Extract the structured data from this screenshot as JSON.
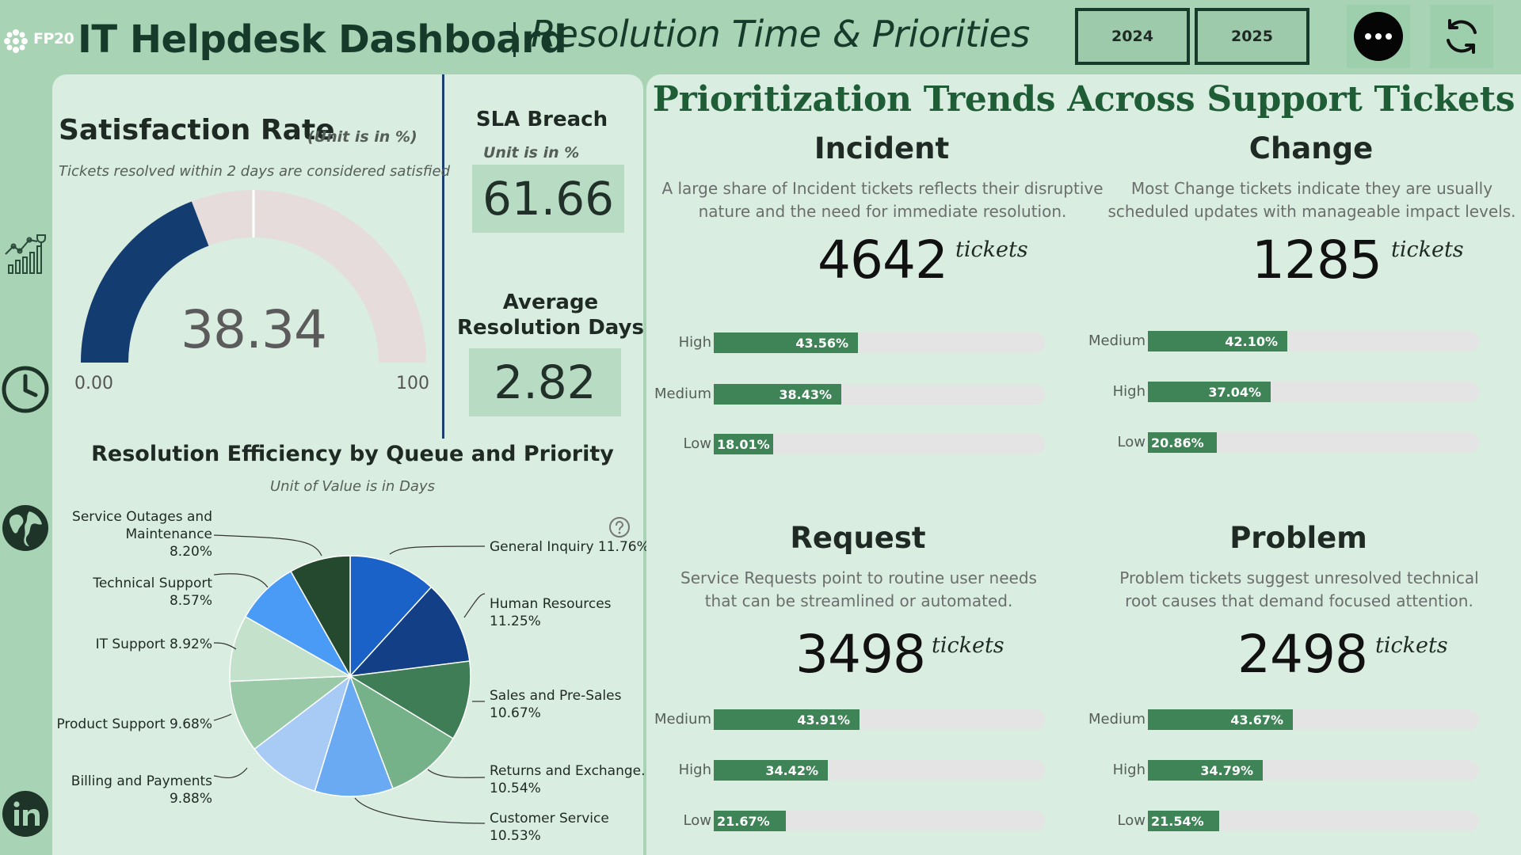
{
  "header": {
    "logo_text": "FP20",
    "app_title": "IT Helpdesk Dashboard",
    "subtitle": "Resolution Time & Priorities",
    "year_buttons": [
      "2024",
      "2025"
    ],
    "more_icon": "more-horizontal-icon",
    "refresh_icon": "refresh-icon"
  },
  "nav": {
    "icons": [
      "growth-chart-icon",
      "clock-icon",
      "globe-icon",
      "linkedin-icon"
    ]
  },
  "satisfaction": {
    "title": "Satisfaction Rate",
    "unit": "(Unit is in %)",
    "note": "Tickets resolved within 2 days are considered satisfied",
    "value": "38.34",
    "value_number": 38.34,
    "target_number": 50,
    "min": "0.00",
    "max": "100",
    "min_number": 0,
    "max_number": 100
  },
  "sla": {
    "title": "SLA Breach",
    "unit": "Unit is in %",
    "value": "61.66"
  },
  "avg_resolution": {
    "title": "Average Resolution Days",
    "value": "2.82"
  },
  "pie": {
    "title": "Resolution Efficiency by Queue and Priority",
    "unit": "Unit of Value is in Days",
    "chart_data": {
      "type": "pie",
      "title": "Resolution Efficiency by Queue and Priority",
      "categories": [
        "General Inquiry",
        "Human Resources",
        "Sales and Pre-Sales",
        "Returns and Exchange...",
        "Customer Service",
        "Billing and Payments",
        "Product Support",
        "IT Support",
        "Technical Support",
        "Service Outages and Maintenance"
      ],
      "values": [
        11.76,
        11.25,
        10.67,
        10.54,
        10.53,
        9.88,
        9.68,
        8.92,
        8.57,
        8.2
      ],
      "colors": [
        "#1a62c8",
        "#123f86",
        "#3e7d55",
        "#76b289",
        "#6aaaf2",
        "#a7cbf5",
        "#99c9a6",
        "#c4e1cc",
        "#4a9bf5",
        "#25492f"
      ]
    },
    "labels": [
      {
        "name": "General Inquiry 11.76%"
      },
      {
        "name": "Human Resources",
        "value": "11.25%"
      },
      {
        "name": "Sales and Pre-Sales",
        "value": "10.67%"
      },
      {
        "name": "Returns and Exchange...",
        "value": "10.54%"
      },
      {
        "name": "Customer Service",
        "value": "10.53%"
      },
      {
        "name": "Billing and Payments",
        "value": "9.88%"
      },
      {
        "name": "Product Support 9.68%"
      },
      {
        "name": "IT Support 8.92%"
      },
      {
        "name": "Technical Support",
        "value": "8.57%"
      },
      {
        "name": "Service Outages and",
        "name2": "Maintenance",
        "value": "8.20%"
      }
    ],
    "help_icon": "help-circle-icon"
  },
  "trends": {
    "title": "Prioritization Trends Across Support Tickets",
    "tickets_unit": "tickets",
    "categories": [
      {
        "title": "Incident",
        "desc_line1": "A large share of Incident tickets reflects their disruptive",
        "desc_line2": "nature and the need for immediate resolution.",
        "count": "4642",
        "bars": [
          {
            "label": "High",
            "pct": 43.56,
            "text": "43.56%"
          },
          {
            "label": "Medium",
            "pct": 38.43,
            "text": "38.43%"
          },
          {
            "label": "Low",
            "pct": 18.01,
            "text": "18.01%"
          }
        ]
      },
      {
        "title": "Change",
        "desc_line1": "Most Change tickets indicate they are usually",
        "desc_line2": "scheduled updates with manageable impact levels.",
        "count": "1285",
        "bars": [
          {
            "label": "Medium",
            "pct": 42.1,
            "text": "42.10%"
          },
          {
            "label": "High",
            "pct": 37.04,
            "text": "37.04%"
          },
          {
            "label": "Low",
            "pct": 20.86,
            "text": "20.86%"
          }
        ]
      },
      {
        "title": "Request",
        "desc_line1": "Service Requests point to routine user needs",
        "desc_line2": "that can be streamlined or automated.",
        "count": "3498",
        "bars": [
          {
            "label": "Medium",
            "pct": 43.91,
            "text": "43.91%"
          },
          {
            "label": "High",
            "pct": 34.42,
            "text": "34.42%"
          },
          {
            "label": "Low",
            "pct": 21.67,
            "text": "21.67%"
          }
        ]
      },
      {
        "title": "Problem",
        "desc_line1": "Problem tickets suggest unresolved technical",
        "desc_line2": "root causes that demand focused attention.",
        "count": "2498",
        "bars": [
          {
            "label": "Medium",
            "pct": 43.67,
            "text": "43.67%"
          },
          {
            "label": "High",
            "pct": 34.79,
            "text": "34.79%"
          },
          {
            "label": "Low",
            "pct": 21.54,
            "text": "21.54%"
          }
        ]
      }
    ]
  }
}
